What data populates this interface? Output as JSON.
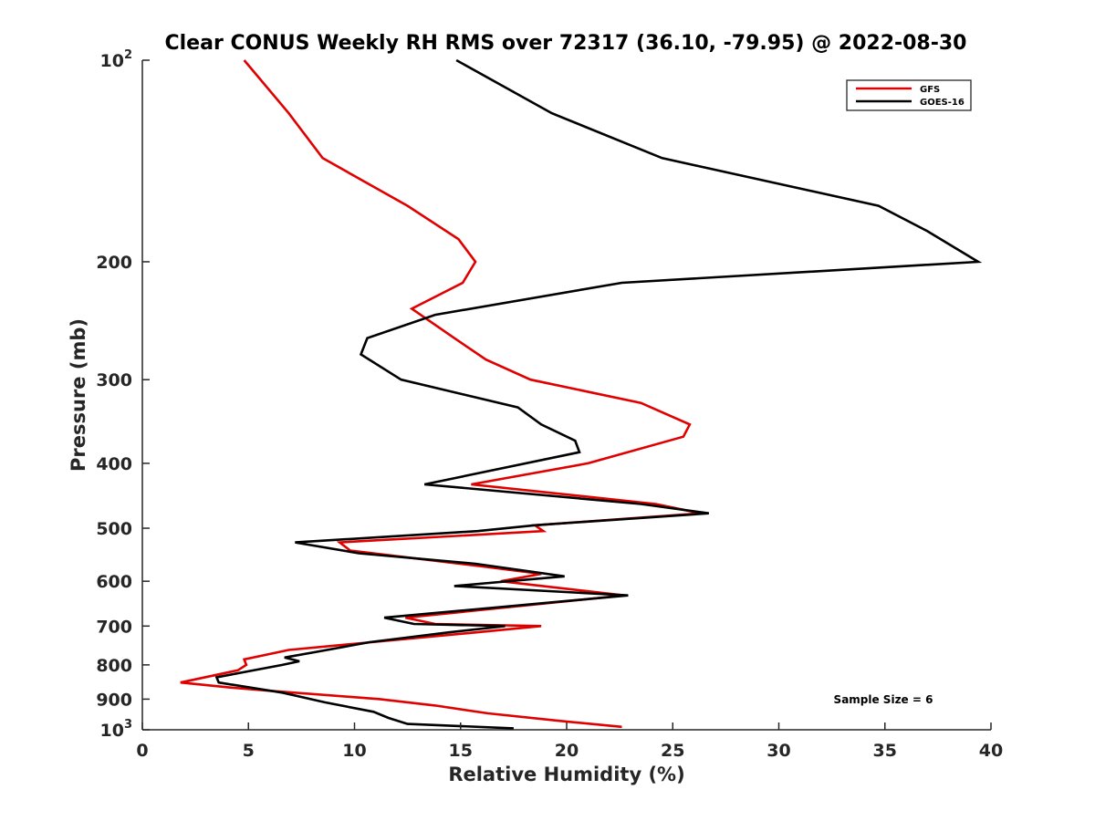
{
  "chart_data": {
    "type": "line",
    "title": "Clear CONUS Weekly RH RMS over 72317 (36.10, -79.95) @ 2022-08-30",
    "xlabel": "Relative Humidity (%)",
    "ylabel": "Pressure (mb)",
    "xlim": [
      0,
      40
    ],
    "ylim": [
      100,
      1000
    ],
    "y_scale": "log",
    "y_reversed": true,
    "x_ticks": [
      0,
      5,
      10,
      15,
      20,
      25,
      30,
      35,
      40
    ],
    "y_ticks": [
      {
        "value": 100,
        "label": "10",
        "sup": "2"
      },
      {
        "value": 200,
        "label": "200"
      },
      {
        "value": 300,
        "label": "300"
      },
      {
        "value": 400,
        "label": "400"
      },
      {
        "value": 500,
        "label": "500"
      },
      {
        "value": 600,
        "label": "600"
      },
      {
        "value": 700,
        "label": "700"
      },
      {
        "value": 800,
        "label": "800"
      },
      {
        "value": 900,
        "label": "900"
      },
      {
        "value": 1000,
        "label": "10",
        "sup": "3"
      }
    ],
    "legend_position": "top-right",
    "grid": false,
    "annotation": "Sample Size = 6",
    "series": [
      {
        "name": "GFS",
        "color": "#e00000",
        "points": [
          [
            4.8,
            100
          ],
          [
            6.9,
            120
          ],
          [
            8.5,
            140
          ],
          [
            12.5,
            165
          ],
          [
            14.9,
            185
          ],
          [
            15.7,
            200
          ],
          [
            15.1,
            215
          ],
          [
            12.7,
            235
          ],
          [
            14.7,
            260
          ],
          [
            16.2,
            280
          ],
          [
            18.3,
            300
          ],
          [
            23.5,
            325
          ],
          [
            25.8,
            350
          ],
          [
            25.5,
            365
          ],
          [
            21.0,
            400
          ],
          [
            15.5,
            430
          ],
          [
            24.2,
            460
          ],
          [
            26.3,
            475
          ],
          [
            18.5,
            495
          ],
          [
            18.9,
            505
          ],
          [
            9.3,
            525
          ],
          [
            9.8,
            540
          ],
          [
            16.0,
            570
          ],
          [
            18.8,
            585
          ],
          [
            16.9,
            600
          ],
          [
            22.7,
            630
          ],
          [
            12.4,
            680
          ],
          [
            13.8,
            695
          ],
          [
            18.8,
            700
          ],
          [
            15.8,
            715
          ],
          [
            10.8,
            740
          ],
          [
            6.9,
            760
          ],
          [
            4.8,
            785
          ],
          [
            4.9,
            800
          ],
          [
            4.5,
            815
          ],
          [
            1.8,
            850
          ],
          [
            4.2,
            865
          ],
          [
            6.1,
            875
          ],
          [
            11.2,
            900
          ],
          [
            13.8,
            920
          ],
          [
            16.3,
            945
          ],
          [
            19.7,
            970
          ],
          [
            22.6,
            990
          ]
        ]
      },
      {
        "name": "GOES-16",
        "color": "#000000",
        "points": [
          [
            14.8,
            100
          ],
          [
            19.3,
            120
          ],
          [
            24.5,
            140
          ],
          [
            34.7,
            165
          ],
          [
            37.0,
            180
          ],
          [
            39.4,
            200
          ],
          [
            22.6,
            215
          ],
          [
            13.8,
            240
          ],
          [
            10.6,
            260
          ],
          [
            10.3,
            275
          ],
          [
            12.2,
            300
          ],
          [
            17.7,
            330
          ],
          [
            18.8,
            350
          ],
          [
            20.4,
            370
          ],
          [
            20.6,
            385
          ],
          [
            13.3,
            430
          ],
          [
            23.5,
            460
          ],
          [
            26.7,
            475
          ],
          [
            18.5,
            495
          ],
          [
            15.8,
            505
          ],
          [
            7.2,
            525
          ],
          [
            10.2,
            545
          ],
          [
            15.7,
            565
          ],
          [
            19.9,
            590
          ],
          [
            14.7,
            610
          ],
          [
            22.9,
            630
          ],
          [
            11.4,
            680
          ],
          [
            12.8,
            695
          ],
          [
            17.1,
            700
          ],
          [
            14.5,
            715
          ],
          [
            10.7,
            740
          ],
          [
            8.2,
            765
          ],
          [
            6.7,
            780
          ],
          [
            7.4,
            790
          ],
          [
            6.6,
            800
          ],
          [
            3.5,
            835
          ],
          [
            3.6,
            850
          ],
          [
            6.6,
            880
          ],
          [
            8.6,
            910
          ],
          [
            10.9,
            940
          ],
          [
            11.6,
            960
          ],
          [
            12.5,
            980
          ],
          [
            17.5,
            995
          ]
        ]
      }
    ]
  }
}
